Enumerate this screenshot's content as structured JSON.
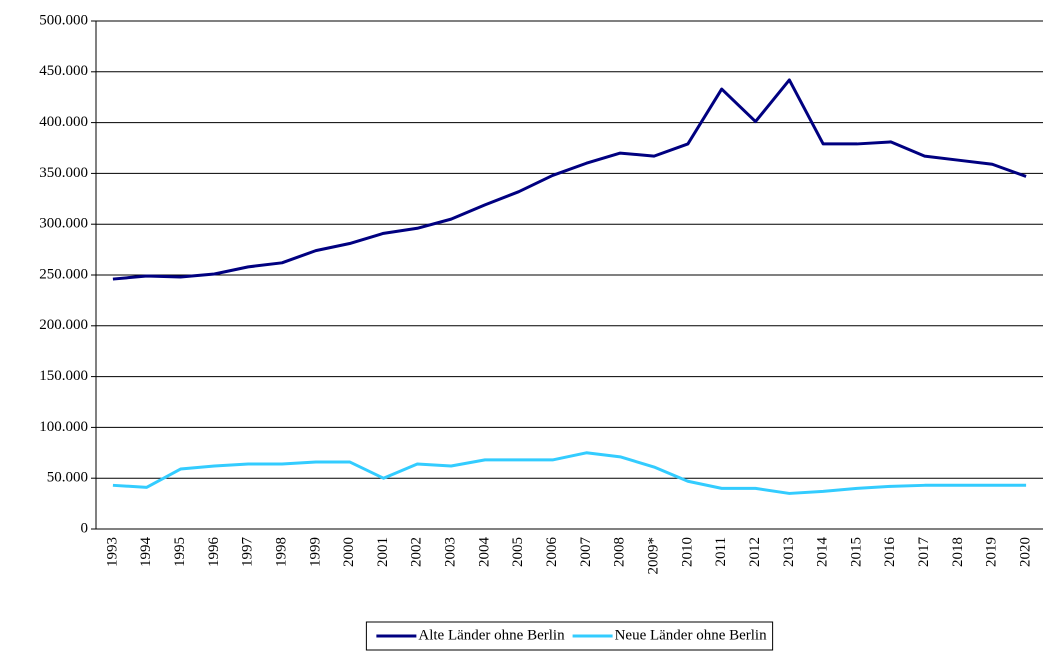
{
  "chart_data": {
    "type": "line",
    "categories": [
      "1993",
      "1994",
      "1995",
      "1996",
      "1997",
      "1998",
      "1999",
      "2000",
      "2001",
      "2002",
      "2003",
      "2004",
      "2005",
      "2006",
      "2007",
      "2008",
      "2009*",
      "2010",
      "2011",
      "2012",
      "2013",
      "2014",
      "2015",
      "2016",
      "2017",
      "2018",
      "2019",
      "2020"
    ],
    "series": [
      {
        "name": "Alte Länder ohne Berlin",
        "color": "#000080",
        "values": [
          246000,
          249000,
          248000,
          251000,
          258000,
          262000,
          274000,
          281000,
          291000,
          296000,
          305000,
          319000,
          332000,
          348000,
          360000,
          370000,
          367000,
          379000,
          433000,
          401000,
          442000,
          379000,
          379000,
          381000,
          367000,
          363000,
          359000,
          347000
        ]
      },
      {
        "name": "Neue Länder ohne Berlin",
        "color": "#33ccff",
        "values": [
          43000,
          41000,
          59000,
          62000,
          64000,
          64000,
          66000,
          66000,
          50000,
          64000,
          62000,
          68000,
          68000,
          68000,
          75000,
          71000,
          61000,
          47000,
          40000,
          40000,
          35000,
          37000,
          40000,
          42000,
          43000,
          43000,
          43000,
          43000
        ]
      }
    ],
    "ylim": [
      0,
      500000
    ],
    "yticks": [
      0,
      {
        "value": 50000,
        "label": "50.000"
      },
      {
        "value": 100000,
        "label": "100.000"
      },
      {
        "value": 150000,
        "label": "150.000"
      },
      {
        "value": 200000,
        "label": "200.000"
      },
      {
        "value": 250000,
        "label": "250.000"
      },
      {
        "value": 300000,
        "label": "300.000"
      },
      {
        "value": 350000,
        "label": "350.000"
      },
      {
        "value": 400000,
        "label": "400.000"
      },
      {
        "value": 450000,
        "label": "450.000"
      },
      {
        "value": 500000,
        "label": "500.000"
      }
    ],
    "grid": true,
    "legend": "bottom"
  }
}
